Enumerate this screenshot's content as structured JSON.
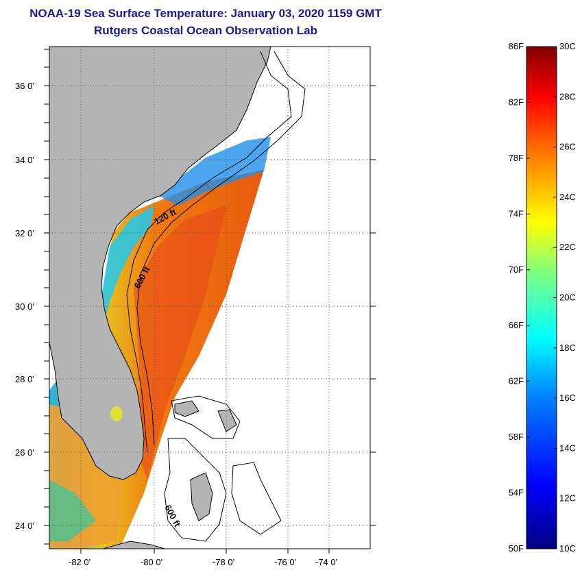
{
  "header": {
    "title": "NOAA-19 Sea Surface Temperature:  January 03, 2020 1159 GMT",
    "subtitle": "Rutgers Coastal Ocean Observation Lab"
  },
  "map": {
    "lat_labels": [
      "36 0'",
      "34 0'",
      "32 0'",
      "30 0'",
      "28 0'",
      "26 0'",
      "24 0'"
    ],
    "lon_labels": [
      "-82 0'",
      "-80 0'",
      "-78 0'",
      "-76 0'",
      "-74 0'"
    ],
    "contour_labels": [
      "120 ft",
      "600 ft",
      "600 ft"
    ],
    "colors": {
      "land": "#b4b4b4",
      "no_data": "#ffffff",
      "graticule": "#555555"
    }
  },
  "colorbar": {
    "f_labels": [
      "86F",
      "82F",
      "78F",
      "74F",
      "70F",
      "66F",
      "62F",
      "58F",
      "54F",
      "50F"
    ],
    "c_labels": [
      "30C",
      "28C",
      "26C",
      "24C",
      "22C",
      "20C",
      "18C",
      "16C",
      "14C",
      "12C",
      "10C"
    ],
    "f_range": [
      50,
      86
    ],
    "c_range": [
      10,
      30
    ],
    "stops": [
      "#00007f",
      "#0000ff",
      "#007fff",
      "#00ffff",
      "#7fff7f",
      "#ffff00",
      "#ff7f00",
      "#ff0000",
      "#7f0000"
    ]
  }
}
